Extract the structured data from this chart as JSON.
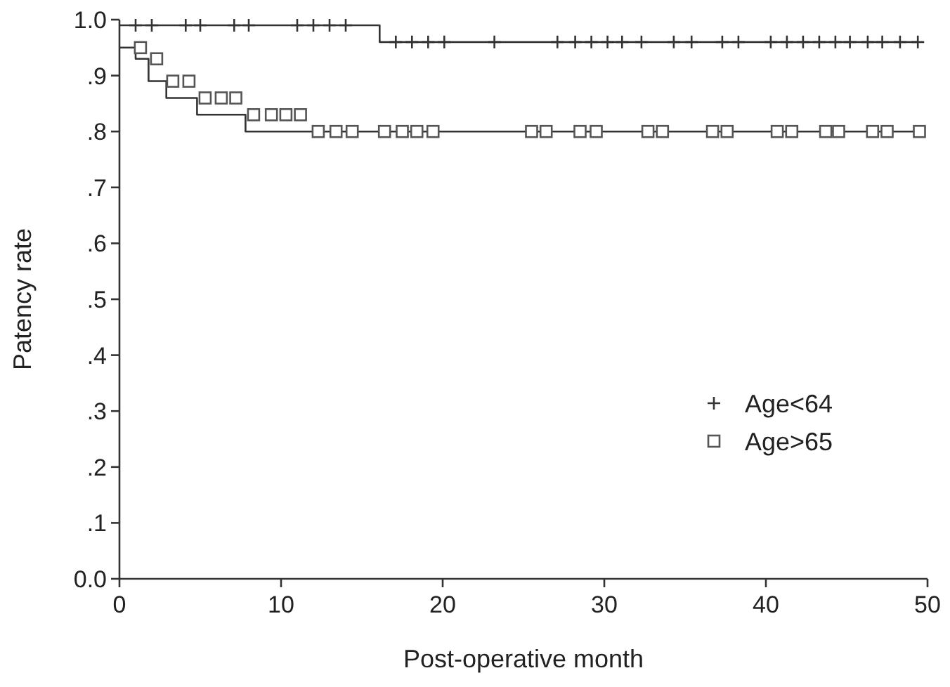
{
  "chart_data": {
    "type": "step",
    "xlabel": "Post-operative month",
    "ylabel": "Patency rate",
    "xlim": [
      0,
      50
    ],
    "xticks": [
      0,
      10,
      20,
      30,
      40,
      50
    ],
    "ylim": [
      0,
      1
    ],
    "yticks": [
      {
        "value": 0,
        "label": "0.0"
      },
      {
        "value": 0.1,
        "label": ".1"
      },
      {
        "value": 0.2,
        "label": ".2"
      },
      {
        "value": 0.3,
        "label": ".3"
      },
      {
        "value": 0.4,
        "label": ".4"
      },
      {
        "value": 0.5,
        "label": ".5"
      },
      {
        "value": 0.6,
        "label": ".6"
      },
      {
        "value": 0.7,
        "label": ".7"
      },
      {
        "value": 0.8,
        "label": ".8"
      },
      {
        "value": 0.9,
        "label": ".9"
      },
      {
        "value": 1,
        "label": "1.0"
      }
    ],
    "grid": false,
    "legend": "bottom right",
    "series": [
      {
        "type": "step",
        "color": "#333333",
        "marker": "none",
        "x": [
          0,
          16.1,
          49.4
        ],
        "values": [
          0.99,
          0.96,
          0.96
        ]
      },
      {
        "type": "step",
        "color": "#333333",
        "marker": "none",
        "x": [
          0,
          1,
          1.8,
          2.9,
          4.8,
          7.8,
          11.8,
          49.5
        ],
        "values": [
          0.95,
          0.93,
          0.89,
          0.86,
          0.83,
          0.8,
          0.8,
          0.8
        ]
      },
      {
        "type": "scatter",
        "name": "Age<64",
        "color": "#333333",
        "marker": "cross",
        "x": [
          1,
          2,
          4.1,
          5,
          7.1,
          8,
          11,
          12,
          13,
          14,
          17.1,
          18.1,
          19.1,
          20.1,
          23.2,
          27.1,
          28.2,
          29.2,
          30.2,
          31.1,
          32.3,
          34.3,
          35.4,
          37.3,
          38.3,
          40.3,
          41.3,
          42.3,
          43.3,
          44.3,
          45.2,
          46.3,
          47.2,
          48.3,
          49.4
        ],
        "values": [
          0.99,
          0.99,
          0.99,
          0.99,
          0.99,
          0.99,
          0.99,
          0.99,
          0.99,
          0.99,
          0.96,
          0.96,
          0.96,
          0.96,
          0.96,
          0.96,
          0.96,
          0.96,
          0.96,
          0.96,
          0.96,
          0.96,
          0.96,
          0.96,
          0.96,
          0.96,
          0.96,
          0.96,
          0.96,
          0.96,
          0.96,
          0.96,
          0.96,
          0.96,
          0.96
        ]
      },
      {
        "type": "scatter",
        "name": "Age>65",
        "color": "#555555",
        "marker": "square",
        "x": [
          1.3,
          2.3,
          3.3,
          4.3,
          5.3,
          6.3,
          7.2,
          8.3,
          9.4,
          10.3,
          11.2,
          12.3,
          13.4,
          14.4,
          16.4,
          17.5,
          18.4,
          19.4,
          25.5,
          26.4,
          28.5,
          29.5,
          32.7,
          33.6,
          36.7,
          37.6,
          40.7,
          41.6,
          43.7,
          44.5,
          46.6,
          47.5,
          49.5
        ],
        "values": [
          0.95,
          0.93,
          0.89,
          0.89,
          0.86,
          0.86,
          0.86,
          0.83,
          0.83,
          0.83,
          0.83,
          0.8,
          0.8,
          0.8,
          0.8,
          0.8,
          0.8,
          0.8,
          0.8,
          0.8,
          0.8,
          0.8,
          0.8,
          0.8,
          0.8,
          0.8,
          0.8,
          0.8,
          0.8,
          0.8,
          0.8,
          0.8,
          0.8
        ]
      }
    ]
  }
}
